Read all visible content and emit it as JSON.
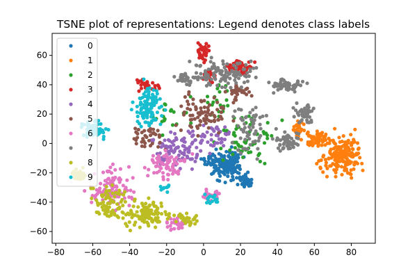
{
  "chart_data": {
    "type": "scatter",
    "title": "TSNE plot of representations: Legend denotes class labels",
    "xlabel": "",
    "ylabel": "",
    "xlim": [
      -82,
      93
    ],
    "ylim": [
      -68,
      75
    ],
    "xticks": [
      -80,
      -60,
      -40,
      -20,
      0,
      20,
      40,
      60,
      80
    ],
    "yticks": [
      -60,
      -40,
      -20,
      0,
      20,
      40,
      60
    ],
    "grid": false,
    "legend_position": "top-left",
    "series": [
      {
        "name": "0",
        "color": "#1f77b4",
        "clusters": [
          {
            "cx": 12,
            "cy": -14,
            "rx": 7,
            "ry": 8,
            "n": 150
          },
          {
            "cx": 22,
            "cy": -25,
            "rx": 4,
            "ry": 4,
            "n": 40
          },
          {
            "cx": 3,
            "cy": -12,
            "rx": 3,
            "ry": 3,
            "n": 15
          }
        ]
      },
      {
        "name": "1",
        "color": "#ff7f0e",
        "clusters": [
          {
            "cx": 75,
            "cy": -8,
            "rx": 9,
            "ry": 12,
            "n": 180
          },
          {
            "cx": 62,
            "cy": 3,
            "rx": 7,
            "ry": 4,
            "n": 60
          },
          {
            "cx": 52,
            "cy": 10,
            "rx": 4,
            "ry": 4,
            "n": 25
          }
        ]
      },
      {
        "name": "2",
        "color": "#2ca02c",
        "clusters": [
          {
            "cx": 20,
            "cy": 2,
            "rx": 15,
            "ry": 18,
            "n": 60
          },
          {
            "cx": -18,
            "cy": 20,
            "rx": 8,
            "ry": 10,
            "n": 20
          },
          {
            "cx": 5,
            "cy": 30,
            "rx": 10,
            "ry": 10,
            "n": 20
          }
        ]
      },
      {
        "name": "3",
        "color": "#d62728",
        "clusters": [
          {
            "cx": 0,
            "cy": 62,
            "rx": 3,
            "ry": 5,
            "n": 40
          },
          {
            "cx": 20,
            "cy": 52,
            "rx": 6,
            "ry": 4,
            "n": 50
          },
          {
            "cx": 3,
            "cy": 45,
            "rx": 3,
            "ry": 4,
            "n": 25
          },
          {
            "cx": -30,
            "cy": 40,
            "rx": 6,
            "ry": 3,
            "n": 25
          }
        ]
      },
      {
        "name": "4",
        "color": "#9467bd",
        "clusters": [
          {
            "cx": -15,
            "cy": -5,
            "rx": 12,
            "ry": 10,
            "n": 90
          },
          {
            "cx": 5,
            "cy": 5,
            "rx": 10,
            "ry": 8,
            "n": 50
          }
        ]
      },
      {
        "name": "5",
        "color": "#8c564b",
        "clusters": [
          {
            "cx": 0,
            "cy": 20,
            "rx": 12,
            "ry": 10,
            "n": 80
          },
          {
            "cx": -30,
            "cy": 5,
            "rx": 8,
            "ry": 8,
            "n": 40
          },
          {
            "cx": 20,
            "cy": 35,
            "rx": 6,
            "ry": 6,
            "n": 30
          }
        ]
      },
      {
        "name": "6",
        "color": "#e377c2",
        "clusters": [
          {
            "cx": -50,
            "cy": -30,
            "rx": 10,
            "ry": 12,
            "n": 100
          },
          {
            "cx": -20,
            "cy": -15,
            "rx": 10,
            "ry": 8,
            "n": 70
          },
          {
            "cx": -15,
            "cy": -55,
            "rx": 5,
            "ry": 4,
            "n": 30
          },
          {
            "cx": 5,
            "cy": -35,
            "rx": 5,
            "ry": 4,
            "n": 20
          }
        ]
      },
      {
        "name": "7",
        "color": "#7f7f7f",
        "clusters": [
          {
            "cx": 10,
            "cy": 48,
            "rx": 15,
            "ry": 8,
            "n": 110
          },
          {
            "cx": 45,
            "cy": 40,
            "rx": 8,
            "ry": 4,
            "n": 60
          },
          {
            "cx": 55,
            "cy": 20,
            "rx": 5,
            "ry": 6,
            "n": 50
          },
          {
            "cx": 45,
            "cy": 2,
            "rx": 6,
            "ry": 6,
            "n": 50
          },
          {
            "cx": 25,
            "cy": 10,
            "rx": 8,
            "ry": 15,
            "n": 60
          },
          {
            "cx": -10,
            "cy": 45,
            "rx": 6,
            "ry": 4,
            "n": 30
          }
        ]
      },
      {
        "name": "8",
        "color": "#bcbd22",
        "clusters": [
          {
            "cx": -30,
            "cy": -48,
            "rx": 10,
            "ry": 8,
            "n": 120
          },
          {
            "cx": -50,
            "cy": -40,
            "rx": 8,
            "ry": 10,
            "n": 70
          },
          {
            "cx": -68,
            "cy": -22,
            "rx": 5,
            "ry": 4,
            "n": 30
          },
          {
            "cx": -10,
            "cy": -52,
            "rx": 6,
            "ry": 4,
            "n": 30
          }
        ]
      },
      {
        "name": "9",
        "color": "#17becf",
        "clusters": [
          {
            "cx": -30,
            "cy": 25,
            "rx": 6,
            "ry": 12,
            "n": 110
          },
          {
            "cx": -60,
            "cy": 10,
            "rx": 7,
            "ry": 6,
            "n": 60
          },
          {
            "cx": 5,
            "cy": -38,
            "rx": 4,
            "ry": 3,
            "n": 15
          },
          {
            "cx": -20,
            "cy": -30,
            "rx": 3,
            "ry": 3,
            "n": 10
          }
        ]
      }
    ]
  }
}
